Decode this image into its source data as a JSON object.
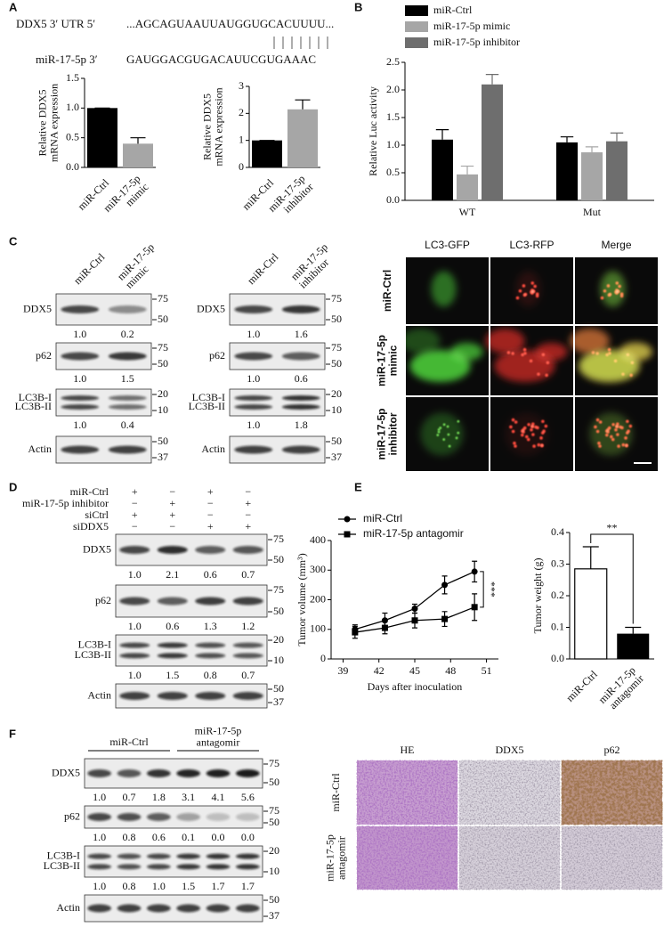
{
  "panel_labels": [
    "A",
    "B",
    "C",
    "D",
    "E",
    "F"
  ],
  "sequence": {
    "utr_label": "DDX5 3′ UTR 5′",
    "utr_seq": "...AGCAGUAAUUAUGGUGCACUUUU...",
    "mir_label": "miR-17-5p 3′",
    "mir_seq": "GAUGGACGUGACAUUCGUGAAAC"
  },
  "chart_data": [
    {
      "type": "bar",
      "ylabel": [
        "Relative DDX5",
        "mRNA expression"
      ],
      "categories": [
        "miR-Ctrl",
        [
          "miR-17-5p",
          "mimic"
        ]
      ],
      "values": [
        1,
        0.4
      ],
      "errors": [
        0,
        0.1
      ],
      "colors": [
        "#000000",
        "#a6a6a6"
      ],
      "ylim": [
        0,
        1.5
      ],
      "yticks": [
        {
          "value": 0,
          "label": "0.0"
        },
        {
          "value": 0.5,
          "label": "0.5"
        },
        {
          "value": 1,
          "label": "1.0"
        },
        {
          "value": 1.5,
          "label": "1.5"
        }
      ]
    },
    {
      "type": "bar",
      "ylabel": [
        "Relative DDX5",
        "mRNA expression"
      ],
      "categories": [
        "miR-Ctrl",
        [
          "miR-17-5p",
          "inhibitor"
        ]
      ],
      "values": [
        1,
        2.15
      ],
      "errors": [
        0,
        0.35
      ],
      "colors": [
        "#000000",
        "#a6a6a6"
      ],
      "ylim": [
        0,
        3
      ],
      "yticks": [
        0,
        1,
        2,
        3
      ]
    },
    {
      "type": "bar",
      "ylabel": "Relative Luc activity",
      "categories": [
        "WT",
        "Mut"
      ],
      "series": [
        {
          "name": "miR-Ctrl",
          "color": "#000000",
          "values": [
            1.1,
            1.05
          ],
          "errors": [
            0.18,
            0.1
          ]
        },
        {
          "name": "miR-17-5p mimic",
          "color": "#a6a6a6",
          "values": [
            0.47,
            0.87
          ],
          "errors": [
            0.15,
            0.1
          ]
        },
        {
          "name": "miR-17-5p inhibitor",
          "color": "#6e6e6e",
          "values": [
            2.1,
            1.07
          ],
          "errors": [
            0.18,
            0.15
          ]
        }
      ],
      "legend": "top-left",
      "ylim": [
        0,
        2.5
      ],
      "yticks": [
        {
          "value": 0,
          "label": "0.0"
        },
        {
          "value": 0.5,
          "label": "0.5"
        },
        {
          "value": 1,
          "label": "1.0"
        },
        {
          "value": 1.5,
          "label": "1.5"
        },
        {
          "value": 2,
          "label": "2.0"
        },
        {
          "value": 2.5,
          "label": "2.5"
        }
      ]
    },
    {
      "type": "line",
      "xlabel": "Days after inoculation",
      "ylabel": "Tumor volume (mm³)",
      "x": [
        40,
        42.5,
        45,
        47.5,
        50
      ],
      "series": [
        {
          "name": "miR-Ctrl",
          "color": "#000000",
          "marker": "circle",
          "values": [
            100,
            130,
            170,
            250,
            295
          ],
          "errors": [
            15,
            25,
            15,
            30,
            35
          ]
        },
        {
          "name": "miR-17-5p antagomir",
          "color": "#000000",
          "marker": "square",
          "values": [
            90,
            105,
            130,
            135,
            175
          ],
          "errors": [
            20,
            20,
            25,
            25,
            45
          ]
        }
      ],
      "legend": "top-left",
      "xlim": [
        38,
        52
      ],
      "xticks": [
        39,
        42,
        45,
        48,
        51
      ],
      "ylim": [
        0,
        400
      ],
      "yticks": [
        0,
        100,
        200,
        300,
        400
      ],
      "annotation": "***"
    },
    {
      "type": "bar",
      "ylabel": "Tumor weight (g)",
      "categories": [
        "miR-Ctrl",
        [
          "miR-17-5p",
          "antagomir"
        ]
      ],
      "values": [
        0.285,
        0.08
      ],
      "errors": [
        0.07,
        0.02
      ],
      "colors": [
        "#ffffff",
        "#000000"
      ],
      "ylim": [
        0,
        0.4
      ],
      "yticks": [
        {
          "value": 0,
          "label": "0.0"
        },
        {
          "value": 0.1,
          "label": "0.1"
        },
        {
          "value": 0.2,
          "label": "0.2"
        },
        {
          "value": 0.3,
          "label": "0.3"
        },
        {
          "value": 0.4,
          "label": "0.4"
        }
      ],
      "annotation": "**"
    }
  ],
  "blots": [
    {
      "lanes": [
        "miR-Ctrl",
        [
          "miR-17-5p",
          "mimic"
        ]
      ],
      "rows": [
        {
          "labels": [
            "DDX5"
          ],
          "ratios": [
            "1.0",
            "0.2"
          ],
          "markers": [
            75,
            50
          ]
        },
        {
          "labels": [
            "p62"
          ],
          "ratios": [
            "1.0",
            "1.5"
          ],
          "markers": [
            75,
            50
          ]
        },
        {
          "labels": [
            "LC3B-I",
            "LC3B-II"
          ],
          "ratios": [
            "1.0",
            "0.4"
          ],
          "markers": [
            20,
            10
          ]
        },
        {
          "labels": [
            "Actin"
          ],
          "markers": [
            50,
            37
          ]
        }
      ]
    },
    {
      "lanes": [
        "miR-Ctrl",
        [
          "miR-17-5p",
          "inhibitor"
        ]
      ],
      "rows": [
        {
          "labels": [
            "DDX5"
          ],
          "ratios": [
            "1.0",
            "1.6"
          ],
          "markers": [
            75,
            50
          ]
        },
        {
          "labels": [
            "p62"
          ],
          "ratios": [
            "1.0",
            "0.6"
          ],
          "markers": [
            75,
            50
          ]
        },
        {
          "labels": [
            "LC3B-I",
            "LC3B-II"
          ],
          "ratios": [
            "1.0",
            "1.8"
          ],
          "markers": [
            20,
            10
          ]
        },
        {
          "labels": [
            "Actin"
          ],
          "markers": [
            50,
            37
          ]
        }
      ]
    },
    {
      "conditions": [
        {
          "label": "miR-Ctrl",
          "signs": [
            "+",
            "−",
            "+",
            "−"
          ]
        },
        {
          "label": "miR-17-5p inhibitor",
          "signs": [
            "−",
            "+",
            "−",
            "+"
          ]
        },
        {
          "label": "siCtrl",
          "signs": [
            "+",
            "+",
            "−",
            "−"
          ]
        },
        {
          "label": "siDDX5",
          "signs": [
            "−",
            "−",
            "+",
            "+"
          ]
        }
      ],
      "rows": [
        {
          "labels": [
            "DDX5"
          ],
          "ratios": [
            "1.0",
            "2.1",
            "0.6",
            "0.7"
          ],
          "markers": [
            75,
            50
          ]
        },
        {
          "labels": [
            "p62"
          ],
          "ratios": [
            "1.0",
            "0.6",
            "1.3",
            "1.2"
          ],
          "markers": [
            75,
            50
          ]
        },
        {
          "labels": [
            "LC3B-I",
            "LC3B-II"
          ],
          "ratios": [
            "1.0",
            "1.5",
            "0.8",
            "0.7"
          ],
          "markers": [
            20,
            10
          ]
        },
        {
          "labels": [
            "Actin"
          ],
          "markers": [
            50,
            37
          ]
        }
      ]
    },
    {
      "groups": [
        "miR-Ctrl",
        [
          "miR-17-5p",
          "antagomir"
        ]
      ],
      "rows": [
        {
          "labels": [
            "DDX5"
          ],
          "ratios": [
            "1.0",
            "0.7",
            "1.8",
            "3.1",
            "4.1",
            "5.6"
          ],
          "markers": [
            75,
            50
          ]
        },
        {
          "labels": [
            "p62"
          ],
          "ratios": [
            "1.0",
            "0.8",
            "0.6",
            "0.1",
            "0.0",
            "0.0"
          ],
          "markers": [
            75,
            50
          ]
        },
        {
          "labels": [
            "LC3B-I",
            "LC3B-II"
          ],
          "ratios": [
            "1.0",
            "0.8",
            "1.0",
            "1.5",
            "1.7",
            "1.7"
          ],
          "markers": [
            20,
            10
          ]
        },
        {
          "labels": [
            "Actin"
          ],
          "markers": [
            50,
            37
          ]
        }
      ]
    }
  ],
  "micrographs": {
    "columns": [
      "LC3-GFP",
      "LC3-RFP",
      "Merge"
    ],
    "rows": [
      "miR-Ctrl",
      [
        "miR-17-5p",
        "mimic"
      ],
      [
        "miR-17-5p",
        "inhibitor"
      ]
    ]
  },
  "histology": {
    "columns": [
      "HE",
      "DDX5",
      "p62"
    ],
    "rows": [
      "miR-Ctrl",
      [
        "miR-17-5p",
        "antagomir"
      ]
    ]
  }
}
